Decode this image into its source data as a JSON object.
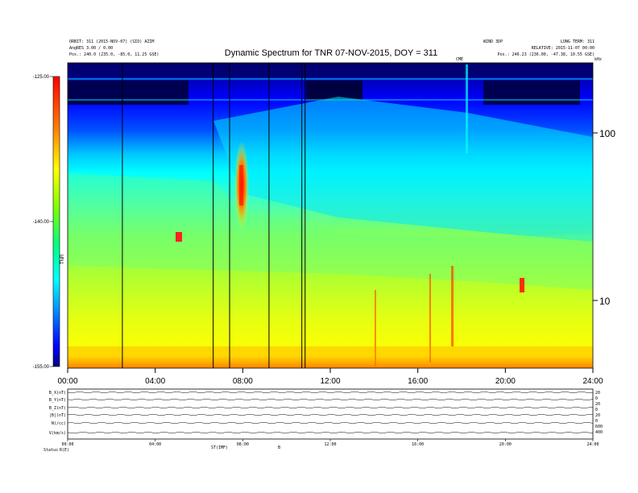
{
  "chart_data": {
    "type": "heatmap",
    "title": "Dynamic Spectrum for TNR 07-NOV-2015, DOY = 311",
    "x_ticks": [
      "00:00",
      "04:00",
      "08:00",
      "12:00",
      "16:00",
      "20:00",
      "24:00"
    ],
    "x_range_hours": [
      0,
      24
    ],
    "y_right_ticks": [
      "100",
      "10"
    ],
    "colorbar": {
      "ticks": [
        "-125.00",
        "-140.00",
        "-155.00"
      ],
      "range": [
        -155,
        -125
      ],
      "label": "TNR",
      "colors": [
        "#000080",
        "#0000ff",
        "#00c8ff",
        "#00ffff",
        "#00ff80",
        "#80ff00",
        "#ffff00",
        "#ff8000",
        "#ff0000"
      ]
    },
    "vertical_event_lines_hours": [
      2.5,
      6.65,
      7.4,
      9.2,
      10.7,
      10.85
    ],
    "header_left": [
      "ORBIT: 311 (2015-NOV-07) (SIO) AZIM",
      "AngRES 3.00 / 0.00",
      "Pos.: 240.0 (235.0, -85.0, 11.25 GSE)"
    ],
    "header_right": [
      "WIND 3DP",
      "LONG TERM: 311",
      "RELATIVE: 2015-11-07 00:00",
      "Pos.: 246.23 (236.00, -47.38, 10.55 GSE)"
    ],
    "marker_label": "CME",
    "top_right_label": "kHz",
    "lower_panel": {
      "channel_labels": [
        "B_X(nT)",
        "B_Y(nT)",
        "B_Z(nT)",
        "|B|(nT)",
        "N(/cc)",
        "V(km/s)"
      ],
      "right_values": [
        "20",
        "0",
        "20",
        "0",
        "20",
        "0",
        "600",
        "400"
      ],
      "x_ticks": [
        "00:00",
        "04:00",
        "08:00",
        "12:00",
        "16:00",
        "20:00",
        "24:00"
      ],
      "footer_labels": [
        "Status",
        "R(E)",
        "ST(IMF)",
        "B"
      ]
    }
  }
}
